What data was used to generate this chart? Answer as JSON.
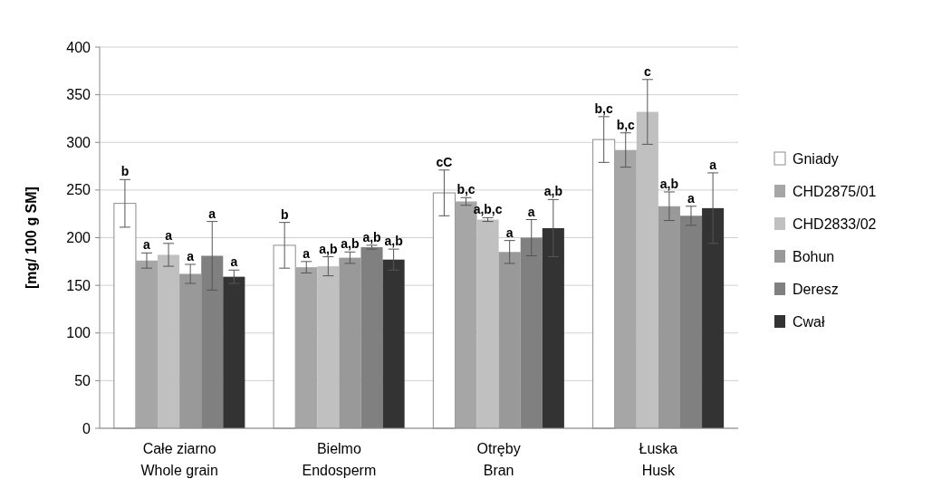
{
  "chart_data": {
    "type": "bar",
    "ylabel": "[mg/ 100 g SM]",
    "categories": [
      "Całe ziarno\nWhole grain",
      "Bielmo\nEndosperm",
      "Otręby\nBran",
      "Łuska\nHusk"
    ],
    "ylim": [
      0,
      400
    ],
    "yticks": [
      0,
      50,
      100,
      150,
      200,
      250,
      300,
      350,
      400
    ],
    "grid": "y",
    "legend": "right",
    "series": [
      {
        "name": "Gniady",
        "color": "#ffffff",
        "values": [
          236,
          192,
          247,
          303
        ],
        "errors": [
          25,
          24,
          24,
          24
        ],
        "value_labels": [
          "b",
          "b",
          "cC",
          "b,c"
        ]
      },
      {
        "name": "CHD2875/01",
        "color": "#a6a6a6",
        "values": [
          176,
          169,
          238,
          292
        ],
        "errors": [
          8,
          6,
          4,
          18
        ],
        "value_labels": [
          "a",
          "a",
          "b,c",
          "b,c"
        ]
      },
      {
        "name": "CHD2833/02",
        "color": "#c0c0c0",
        "values": [
          182,
          170,
          219,
          332
        ],
        "errors": [
          12,
          10,
          2,
          34
        ],
        "value_labels": [
          "a",
          "a,b",
          "a,b,c",
          "c"
        ]
      },
      {
        "name": "Bohun",
        "color": "#999999",
        "values": [
          162,
          179,
          185,
          233
        ],
        "errors": [
          10,
          6,
          12,
          15
        ],
        "value_labels": [
          "a",
          "a,b",
          "a",
          "a,b"
        ]
      },
      {
        "name": "Deresz",
        "color": "#808080",
        "values": [
          181,
          190,
          200,
          223
        ],
        "errors": [
          36,
          2,
          19,
          10
        ],
        "value_labels": [
          "a",
          "a,b",
          "a",
          "a"
        ]
      },
      {
        "name": "Cwał",
        "color": "#333333",
        "values": [
          159,
          177,
          210,
          231
        ],
        "errors": [
          7,
          11,
          30,
          37
        ],
        "value_labels": [
          "a",
          "a,b",
          "a,b",
          "a"
        ]
      }
    ]
  }
}
